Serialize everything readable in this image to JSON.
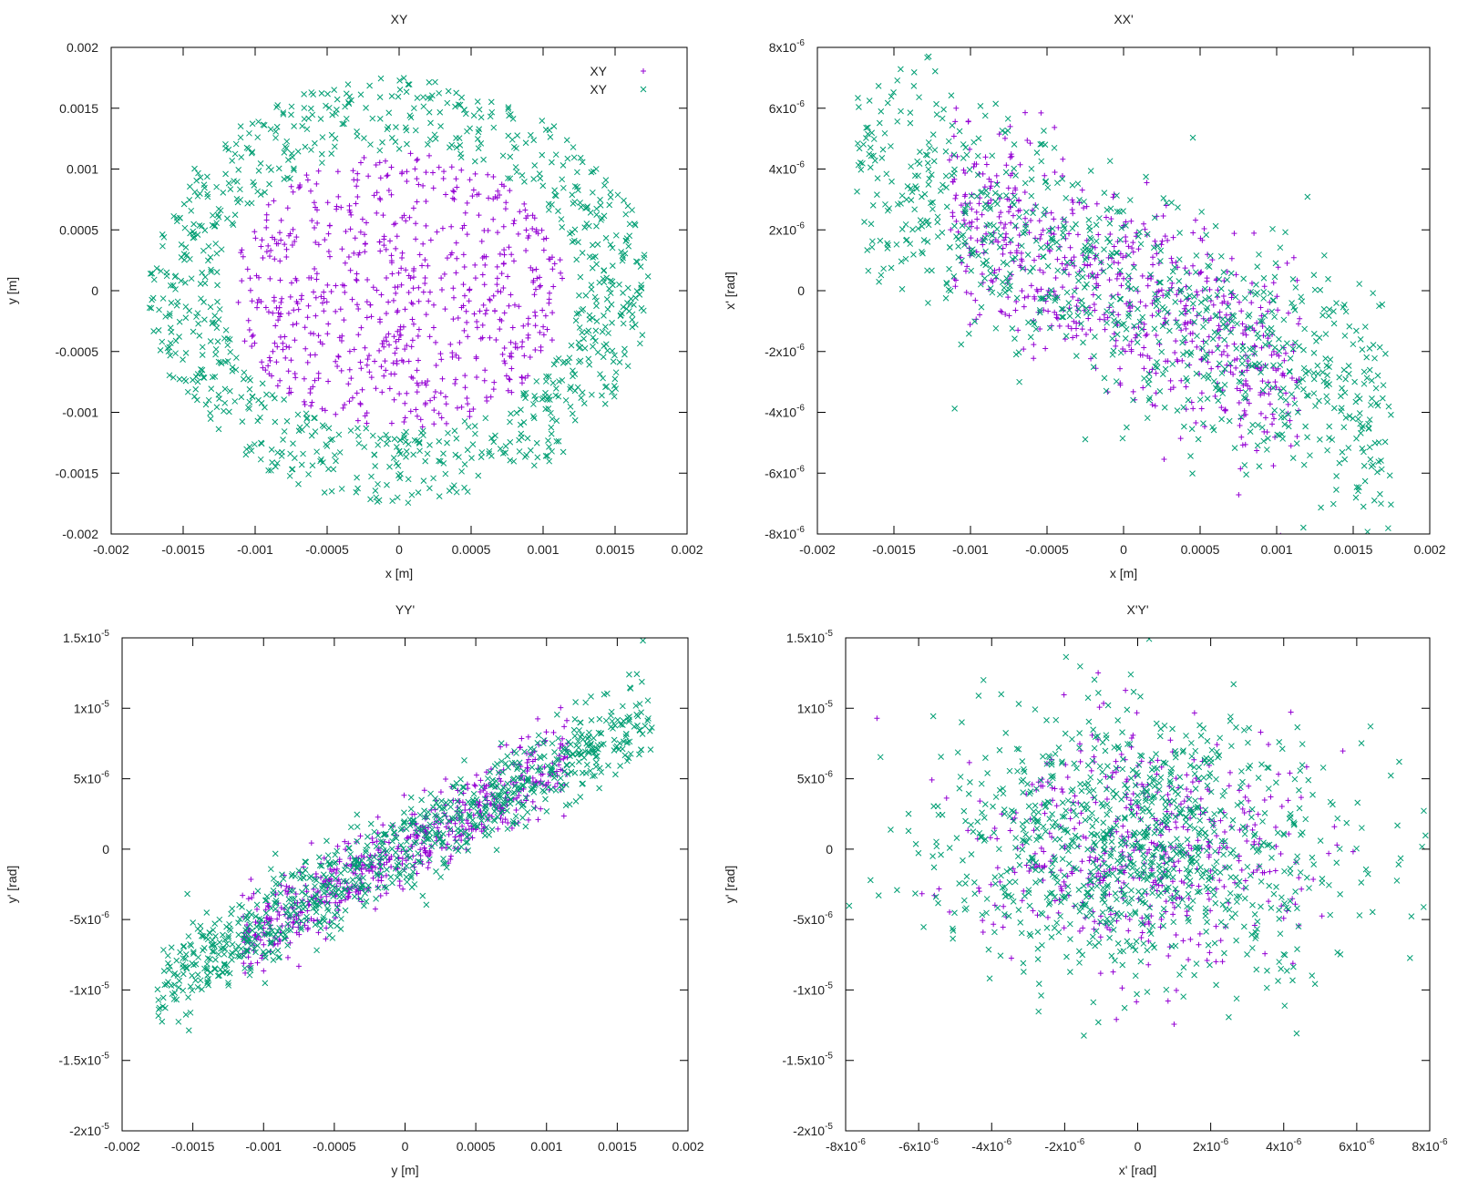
{
  "chart_data": [
    {
      "type": "scatter",
      "title": "XY",
      "xlabel": "x [m]",
      "ylabel": "y [m]",
      "xlim": [
        -0.002,
        0.002
      ],
      "ylim": [
        -0.002,
        0.002
      ],
      "xticks": [
        {
          "v": -0.002,
          "label": "-0.002"
        },
        {
          "v": -0.0015,
          "label": "-0.0015"
        },
        {
          "v": -0.001,
          "label": "-0.001"
        },
        {
          "v": -0.0005,
          "label": "-0.0005"
        },
        {
          "v": 0,
          "label": "0"
        },
        {
          "v": 0.0005,
          "label": "0.0005"
        },
        {
          "v": 0.001,
          "label": "0.001"
        },
        {
          "v": 0.0015,
          "label": "0.0015"
        },
        {
          "v": 0.002,
          "label": "0.002"
        }
      ],
      "yticks": [
        {
          "v": 0.002,
          "label": "0.002"
        },
        {
          "v": 0.0015,
          "label": "0.0015"
        },
        {
          "v": 0.001,
          "label": "0.001"
        },
        {
          "v": 0.0005,
          "label": "0.0005"
        },
        {
          "v": 0,
          "label": "0"
        },
        {
          "v": -0.0005,
          "label": "-0.0005"
        },
        {
          "v": -0.001,
          "label": "-0.001"
        },
        {
          "v": -0.0015,
          "label": "-0.0015"
        },
        {
          "v": -0.002,
          "label": "-0.002"
        }
      ],
      "grid": false,
      "legend_position": "top-right",
      "series": [
        {
          "name": "XY",
          "marker": "+",
          "color": "#9400D3",
          "distribution": {
            "shape": "disk",
            "cx": 0,
            "cy": 0,
            "rx": 0.00115,
            "ry": 0.00115,
            "count": 700
          }
        },
        {
          "name": "XY",
          "marker": "x",
          "color": "#009E73",
          "distribution": {
            "shape": "ring",
            "cx": 0,
            "cy": 0,
            "rx_inner": 0.00125,
            "rx_outer": 0.00175,
            "ry_inner": 0.00115,
            "ry_outer": 0.00175,
            "count": 900
          }
        }
      ]
    },
    {
      "type": "scatter",
      "title": "XX'",
      "xlabel": "x [m]",
      "ylabel": "x' [rad]",
      "xlim": [
        -0.002,
        0.002
      ],
      "ylim": [
        -8e-06,
        8e-06
      ],
      "xticks": [
        {
          "v": -0.002,
          "label": "-0.002"
        },
        {
          "v": -0.0015,
          "label": "-0.0015"
        },
        {
          "v": -0.001,
          "label": "-0.001"
        },
        {
          "v": -0.0005,
          "label": "-0.0005"
        },
        {
          "v": 0,
          "label": "0"
        },
        {
          "v": 0.0005,
          "label": "0.0005"
        },
        {
          "v": 0.001,
          "label": "0.001"
        },
        {
          "v": 0.0015,
          "label": "0.0015"
        },
        {
          "v": 0.002,
          "label": "0.002"
        }
      ],
      "yticks": [
        {
          "v": 8e-06,
          "label": "8x10",
          "exp": "-6"
        },
        {
          "v": 6e-06,
          "label": "6x10",
          "exp": "-6"
        },
        {
          "v": 4e-06,
          "label": "4x10",
          "exp": "-6"
        },
        {
          "v": 2e-06,
          "label": "2x10",
          "exp": "-6"
        },
        {
          "v": 0,
          "label": "0"
        },
        {
          "v": -2e-06,
          "label": "-2x10",
          "exp": "-6"
        },
        {
          "v": -4e-06,
          "label": "-4x10",
          "exp": "-6"
        },
        {
          "v": -6e-06,
          "label": "-6x10",
          "exp": "-6"
        },
        {
          "v": -8e-06,
          "label": "-8x10",
          "exp": "-6"
        }
      ],
      "grid": false,
      "series": [
        {
          "name": "",
          "marker": "+",
          "color": "#9400D3",
          "distribution": {
            "shape": "band",
            "x_range": [
              -0.00115,
              0.00115
            ],
            "slope": -0.0025,
            "intercept": 0,
            "spread": 1.7e-06,
            "count": 700
          }
        },
        {
          "name": "",
          "marker": "x",
          "color": "#009E73",
          "distribution": {
            "shape": "band",
            "x_range": [
              -0.00175,
              0.00175
            ],
            "slope": -0.0025,
            "intercept": 0,
            "spread": 1.9e-06,
            "count": 900
          }
        }
      ]
    },
    {
      "type": "scatter",
      "title": "YY'",
      "xlabel": "y [m]",
      "ylabel": "y' [rad]",
      "xlim": [
        -0.002,
        0.002
      ],
      "ylim": [
        -2e-05,
        1.5e-05
      ],
      "xticks": [
        {
          "v": -0.002,
          "label": "-0.002"
        },
        {
          "v": -0.0015,
          "label": "-0.0015"
        },
        {
          "v": -0.001,
          "label": "-0.001"
        },
        {
          "v": -0.0005,
          "label": "-0.0005"
        },
        {
          "v": 0,
          "label": "0"
        },
        {
          "v": 0.0005,
          "label": "0.0005"
        },
        {
          "v": 0.001,
          "label": "0.001"
        },
        {
          "v": 0.0015,
          "label": "0.0015"
        },
        {
          "v": 0.002,
          "label": "0.002"
        }
      ],
      "yticks": [
        {
          "v": 1.5e-05,
          "label": "1.5x10",
          "exp": "-5"
        },
        {
          "v": 1e-05,
          "label": "1x10",
          "exp": "-5"
        },
        {
          "v": 5e-06,
          "label": "5x10",
          "exp": "-6"
        },
        {
          "v": 0,
          "label": "0"
        },
        {
          "v": -5e-06,
          "label": "-5x10",
          "exp": "-6"
        },
        {
          "v": -1e-05,
          "label": "-1x10",
          "exp": "-5"
        },
        {
          "v": -1.5e-05,
          "label": "-1.5x10",
          "exp": "-5"
        },
        {
          "v": -2e-05,
          "label": "-2x10",
          "exp": "-5"
        }
      ],
      "grid": false,
      "series": [
        {
          "name": "",
          "marker": "+",
          "color": "#9400D3",
          "distribution": {
            "shape": "band",
            "x_range": [
              -0.00115,
              0.00115
            ],
            "slope": 0.0055,
            "intercept": 0,
            "spread": 1.4e-06,
            "count": 600
          }
        },
        {
          "name": "",
          "marker": "x",
          "color": "#009E73",
          "distribution": {
            "shape": "band",
            "x_range": [
              -0.00175,
              0.00175
            ],
            "slope": 0.0055,
            "intercept": 0,
            "spread": 1.6e-06,
            "count": 900
          }
        }
      ]
    },
    {
      "type": "scatter",
      "title": "X'Y'",
      "xlabel": "x' [rad]",
      "ylabel": "y' [rad]",
      "xlim": [
        -8e-06,
        8e-06
      ],
      "ylim": [
        -2e-05,
        1.5e-05
      ],
      "xticks": [
        {
          "v": -8e-06,
          "label": "-8x10",
          "exp": "-6"
        },
        {
          "v": -6e-06,
          "label": "-6x10",
          "exp": "-6"
        },
        {
          "v": -4e-06,
          "label": "-4x10",
          "exp": "-6"
        },
        {
          "v": -2e-06,
          "label": "-2x10",
          "exp": "-6"
        },
        {
          "v": 0,
          "label": "0"
        },
        {
          "v": 2e-06,
          "label": "2x10",
          "exp": "-6"
        },
        {
          "v": 4e-06,
          "label": "4x10",
          "exp": "-6"
        },
        {
          "v": 6e-06,
          "label": "6x10",
          "exp": "-6"
        },
        {
          "v": 8e-06,
          "label": "8x10",
          "exp": "-6"
        }
      ],
      "yticks": [
        {
          "v": 1.5e-05,
          "label": "1.5x10",
          "exp": "-5"
        },
        {
          "v": 1e-05,
          "label": "1x10",
          "exp": "-5"
        },
        {
          "v": 5e-06,
          "label": "5x10",
          "exp": "-6"
        },
        {
          "v": 0,
          "label": "0"
        },
        {
          "v": -5e-06,
          "label": "-5x10",
          "exp": "-6"
        },
        {
          "v": -1e-05,
          "label": "-1x10",
          "exp": "-5"
        },
        {
          "v": -1.5e-05,
          "label": "-1.5x10",
          "exp": "-5"
        },
        {
          "v": -2e-05,
          "label": "-2x10",
          "exp": "-5"
        }
      ],
      "grid": false,
      "series": [
        {
          "name": "",
          "marker": "+",
          "color": "#9400D3",
          "distribution": {
            "shape": "blob",
            "cx": 0,
            "cy": 0,
            "sx": 2.2e-06,
            "sy": 4e-06,
            "count": 500
          }
        },
        {
          "name": "",
          "marker": "x",
          "color": "#009E73",
          "distribution": {
            "shape": "blob",
            "cx": 0,
            "cy": 0,
            "sx": 2.8e-06,
            "sy": 4.6e-06,
            "count": 1000
          }
        }
      ]
    }
  ]
}
